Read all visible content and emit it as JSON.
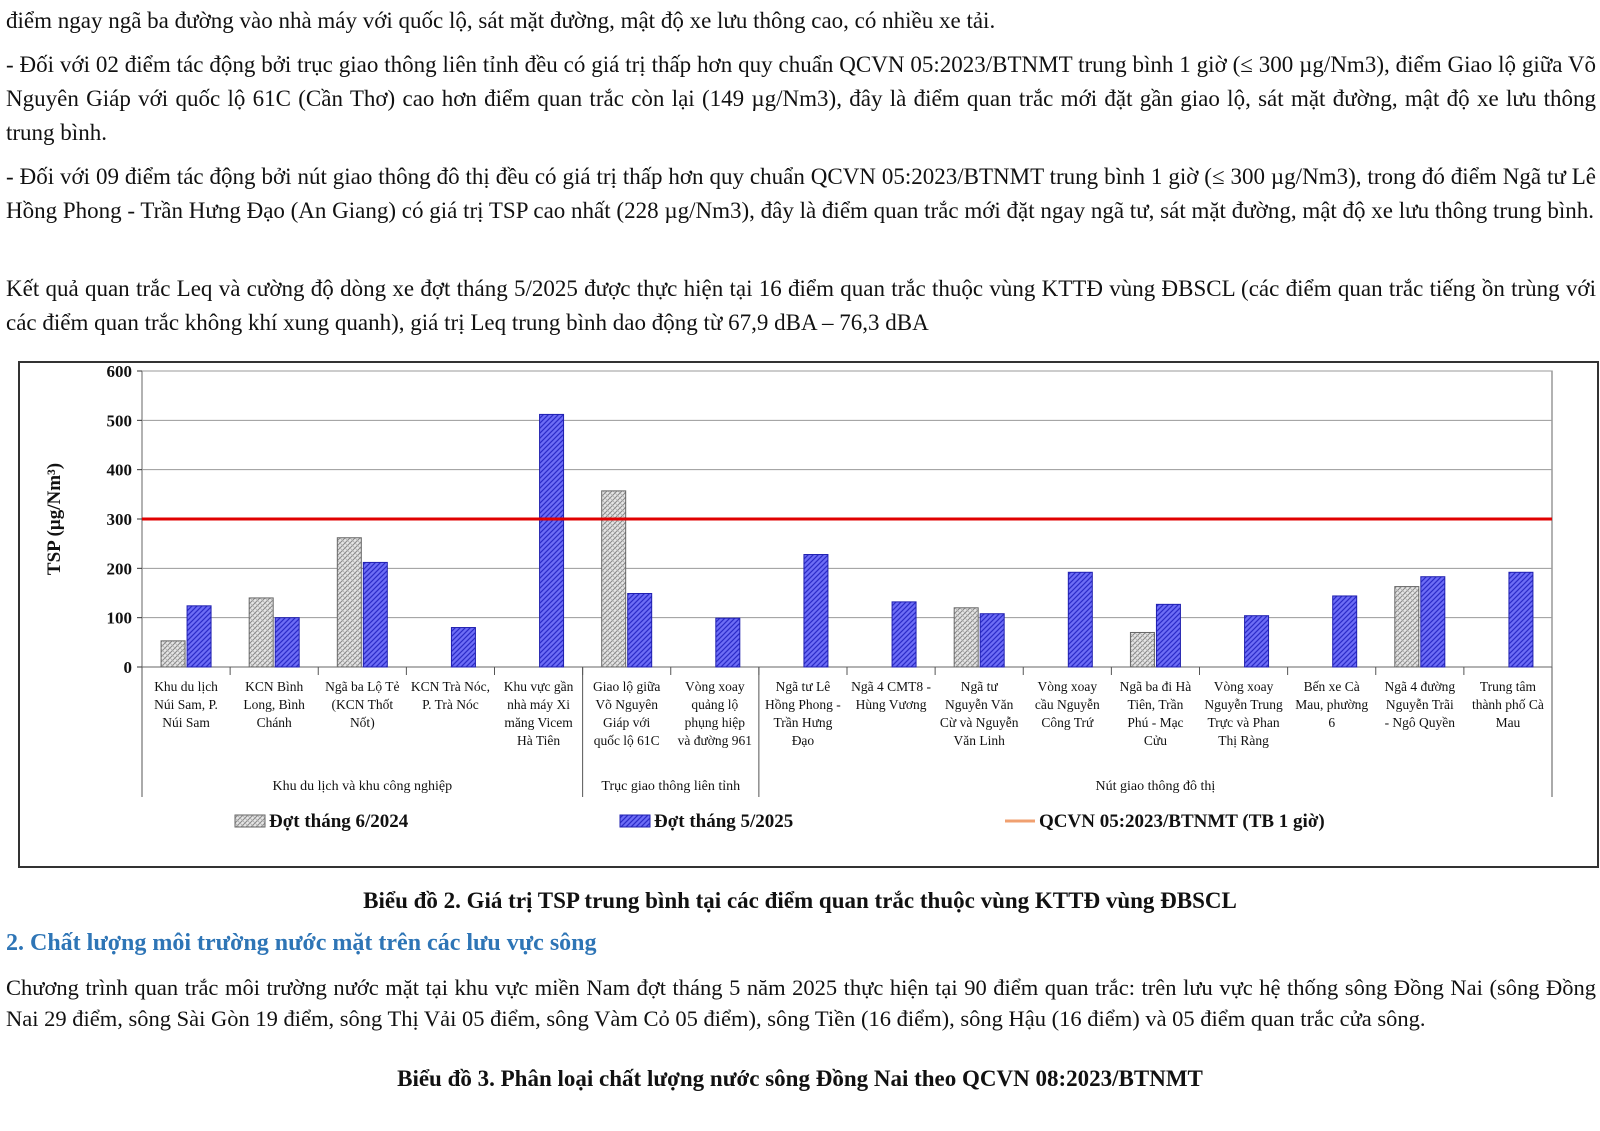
{
  "paragraphs": {
    "p1": "điểm ngay ngã ba đường vào nhà máy với quốc lộ, sát mặt đường, mật độ xe lưu thông cao, có nhiều xe tải.",
    "p2": "- Đối với 02 điểm tác động bởi trục giao thông liên tỉnh đều có giá trị thấp hơn quy chuẩn QCVN 05:2023/BTNMT trung bình 1 giờ (≤ 300 µg/Nm3), điểm Giao lộ giữa Võ Nguyên Giáp với quốc lộ 61C (Cần Thơ) cao hơn điểm quan trắc còn lại (149 µg/Nm3), đây là điểm quan trắc mới đặt gần giao lộ, sát mặt đường, mật độ xe lưu thông trung bình.",
    "p3": "- Đối với 09 điểm tác động bởi nút giao thông đô thị đều có giá trị thấp hơn quy chuẩn QCVN 05:2023/BTNMT trung bình 1 giờ (≤ 300 µg/Nm3), trong đó điểm Ngã tư Lê Hồng Phong - Trần Hưng Đạo (An Giang) có giá trị TSP cao nhất (228 µg/Nm3), đây là điểm quan trắc mới đặt ngay ngã tư, sát mặt đường, mật độ xe lưu thông trung bình.",
    "p4": "Kết quả quan trắc Leq và cường độ dòng xe đợt tháng 5/2025 được thực hiện tại 16 điểm quan trắc thuộc vùng KTTĐ vùng ĐBSCL (các điểm quan trắc tiếng ồn trùng với các điểm quan trắc không khí xung quanh), giá trị Leq trung bình dao động từ 67,9 dBA – 76,3 dBA",
    "p5": "Chương trình quan trắc môi trường nước mặt tại khu vực miền Nam đợt tháng 5 năm 2025 thực hiện tại 90 điểm quan trắc: trên lưu vực hệ thống sông Đồng Nai (sông Đồng Nai 29 điểm, sông Sài Gòn 19 điểm, sông Thị Vải 05 điểm, sông Vàm Cỏ 05 điểm), sông Tiền (16 điểm), sông Hậu (16 điểm) và 05 điểm quan trắc cửa sông."
  },
  "captions": {
    "chart2": "Biểu đồ 2. Giá trị TSP trung bình tại các điểm quan trắc thuộc vùng KTTĐ vùng ĐBSCL",
    "chart3": "Biểu đồ 3. Phân loại chất lượng nước sông Đồng Nai theo QCVN 08:2023/BTNMT"
  },
  "section_heading": "2. Chất lượng môi trường nước mặt trên các lưu vực sông",
  "chart_data": {
    "type": "bar",
    "ylabel": "TSP (µg/Nm³)",
    "ylim": [
      0,
      600
    ],
    "yticks": [
      0,
      100,
      200,
      300,
      400,
      500,
      600
    ],
    "grid": true,
    "legend_position": "bottom",
    "categories": [
      "Khu du lịch Núi Sam, P. Núi Sam",
      "KCN Bình Long, Bình Chánh",
      "Ngã ba Lộ Tẻ (KCN Thốt Nốt)",
      "KCN Trà Nóc, P. Trà Nóc",
      "Khu vực gần nhà máy Xi măng Vicem Hà Tiên",
      "Giao lộ giữa Võ Nguyên Giáp với quốc lộ 61C",
      "Vòng xoay quảng lộ phụng hiệp và đường 961",
      "Ngã tư Lê Hồng Phong - Trần Hưng Đạo",
      "Ngã 4 CMT8 - Hùng Vương",
      "Ngã tư Nguyễn Văn Cừ và Nguyễn Văn Linh",
      "Vòng xoay cầu Nguyễn Công Trứ",
      "Ngã ba đi Hà Tiên, Trần Phú - Mạc Cửu",
      "Vòng xoay Nguyễn Trung Trực và Phan Thị Ràng",
      "Bến xe Cà Mau, phường 6",
      "Ngã 4 đường Nguyễn Trãi - Ngô Quyền",
      "Trung tâm thành phố Cà Mau"
    ],
    "groups": [
      {
        "label": "Khu du lịch và khu công nghiệp",
        "start": 0,
        "end": 4
      },
      {
        "label": "Trục giao thông liên tỉnh",
        "start": 5,
        "end": 6
      },
      {
        "label": "Nút giao thông đô thị",
        "start": 7,
        "end": 15
      }
    ],
    "series": [
      {
        "name": "Đợt tháng 6/2024",
        "color": "#c8c8c8",
        "values": [
          53,
          140,
          262,
          null,
          null,
          357,
          null,
          null,
          null,
          120,
          null,
          70,
          null,
          null,
          163,
          null
        ]
      },
      {
        "name": "Đợt tháng 5/2025",
        "color": "#5b5bf0",
        "values": [
          124,
          100,
          212,
          80,
          512,
          149,
          99,
          228,
          132,
          108,
          192,
          127,
          104,
          144,
          183,
          192
        ]
      }
    ],
    "reference_line": {
      "name": "QCVN 05:2023/BTNMT (TB 1 giờ)",
      "value": 300,
      "color": "#e00000"
    }
  }
}
